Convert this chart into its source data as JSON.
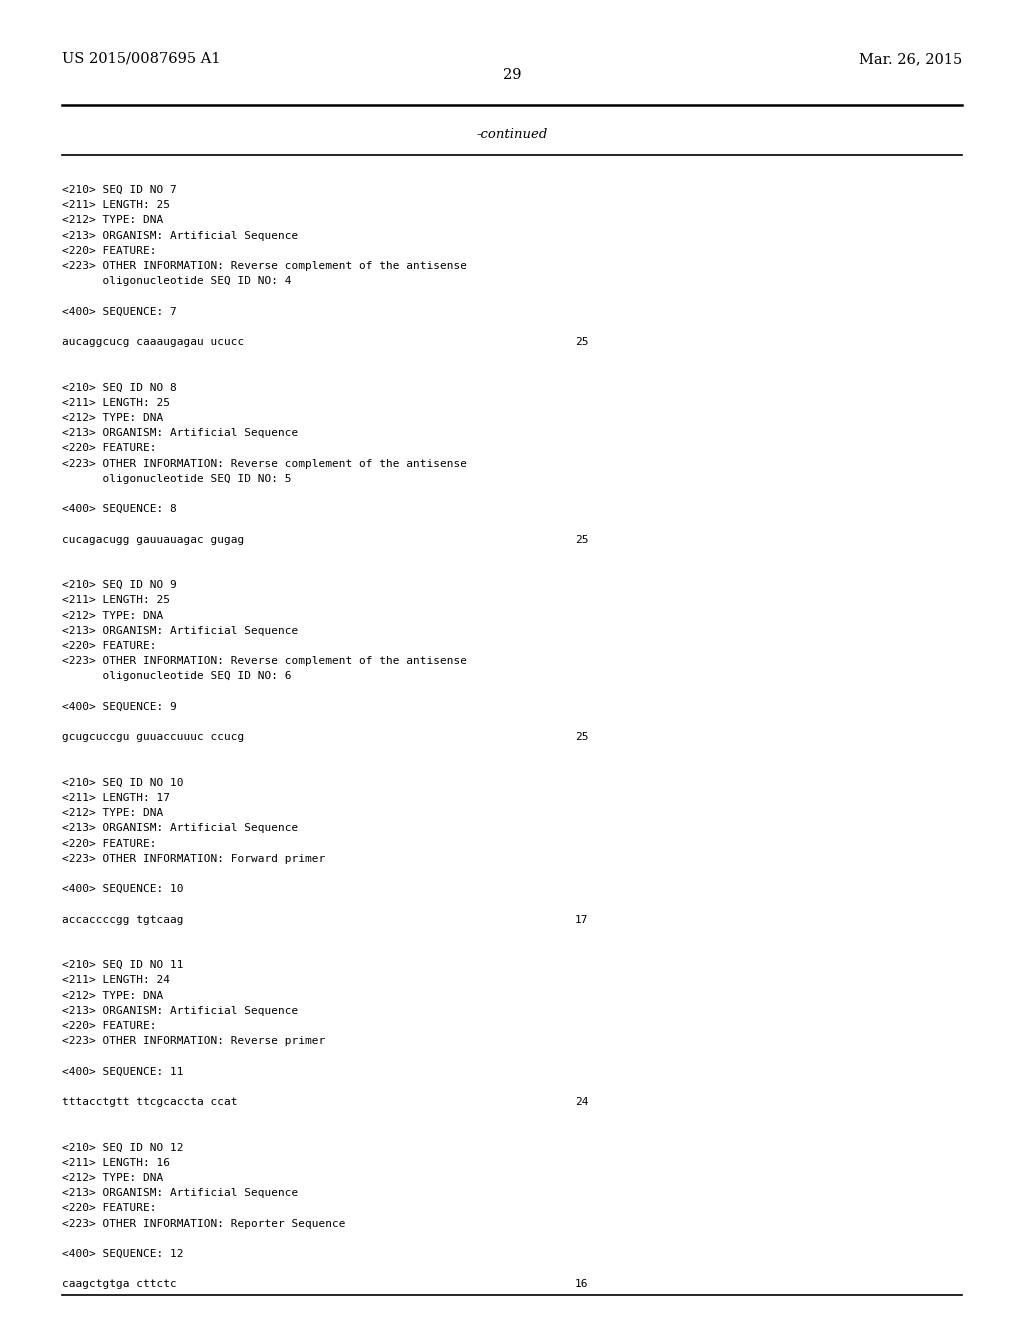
{
  "background_color": "#ffffff",
  "header_left": "US 2015/0087695 A1",
  "header_right": "Mar. 26, 2015",
  "page_number": "29",
  "continued_text": "-continued",
  "content_lines": [
    {
      "text": "<210> SEQ ID NO 7",
      "number": null
    },
    {
      "text": "<211> LENGTH: 25",
      "number": null
    },
    {
      "text": "<212> TYPE: DNA",
      "number": null
    },
    {
      "text": "<213> ORGANISM: Artificial Sequence",
      "number": null
    },
    {
      "text": "<220> FEATURE:",
      "number": null
    },
    {
      "text": "<223> OTHER INFORMATION: Reverse complement of the antisense",
      "number": null
    },
    {
      "text": "      oligonucleotide SEQ ID NO: 4",
      "number": null
    },
    {
      "text": "",
      "number": null
    },
    {
      "text": "<400> SEQUENCE: 7",
      "number": null
    },
    {
      "text": "",
      "number": null
    },
    {
      "text": "aucaggcucg caaaugagau ucucc",
      "number": "25"
    },
    {
      "text": "",
      "number": null
    },
    {
      "text": "",
      "number": null
    },
    {
      "text": "<210> SEQ ID NO 8",
      "number": null
    },
    {
      "text": "<211> LENGTH: 25",
      "number": null
    },
    {
      "text": "<212> TYPE: DNA",
      "number": null
    },
    {
      "text": "<213> ORGANISM: Artificial Sequence",
      "number": null
    },
    {
      "text": "<220> FEATURE:",
      "number": null
    },
    {
      "text": "<223> OTHER INFORMATION: Reverse complement of the antisense",
      "number": null
    },
    {
      "text": "      oligonucleotide SEQ ID NO: 5",
      "number": null
    },
    {
      "text": "",
      "number": null
    },
    {
      "text": "<400> SEQUENCE: 8",
      "number": null
    },
    {
      "text": "",
      "number": null
    },
    {
      "text": "cucagacugg gauuauagac gugag",
      "number": "25"
    },
    {
      "text": "",
      "number": null
    },
    {
      "text": "",
      "number": null
    },
    {
      "text": "<210> SEQ ID NO 9",
      "number": null
    },
    {
      "text": "<211> LENGTH: 25",
      "number": null
    },
    {
      "text": "<212> TYPE: DNA",
      "number": null
    },
    {
      "text": "<213> ORGANISM: Artificial Sequence",
      "number": null
    },
    {
      "text": "<220> FEATURE:",
      "number": null
    },
    {
      "text": "<223> OTHER INFORMATION: Reverse complement of the antisense",
      "number": null
    },
    {
      "text": "      oligonucleotide SEQ ID NO: 6",
      "number": null
    },
    {
      "text": "",
      "number": null
    },
    {
      "text": "<400> SEQUENCE: 9",
      "number": null
    },
    {
      "text": "",
      "number": null
    },
    {
      "text": "gcugcuccgu guuaccuuuc ccucg",
      "number": "25"
    },
    {
      "text": "",
      "number": null
    },
    {
      "text": "",
      "number": null
    },
    {
      "text": "<210> SEQ ID NO 10",
      "number": null
    },
    {
      "text": "<211> LENGTH: 17",
      "number": null
    },
    {
      "text": "<212> TYPE: DNA",
      "number": null
    },
    {
      "text": "<213> ORGANISM: Artificial Sequence",
      "number": null
    },
    {
      "text": "<220> FEATURE:",
      "number": null
    },
    {
      "text": "<223> OTHER INFORMATION: Forward primer",
      "number": null
    },
    {
      "text": "",
      "number": null
    },
    {
      "text": "<400> SEQUENCE: 10",
      "number": null
    },
    {
      "text": "",
      "number": null
    },
    {
      "text": "accaccccgg tgtcaag",
      "number": "17"
    },
    {
      "text": "",
      "number": null
    },
    {
      "text": "",
      "number": null
    },
    {
      "text": "<210> SEQ ID NO 11",
      "number": null
    },
    {
      "text": "<211> LENGTH: 24",
      "number": null
    },
    {
      "text": "<212> TYPE: DNA",
      "number": null
    },
    {
      "text": "<213> ORGANISM: Artificial Sequence",
      "number": null
    },
    {
      "text": "<220> FEATURE:",
      "number": null
    },
    {
      "text": "<223> OTHER INFORMATION: Reverse primer",
      "number": null
    },
    {
      "text": "",
      "number": null
    },
    {
      "text": "<400> SEQUENCE: 11",
      "number": null
    },
    {
      "text": "",
      "number": null
    },
    {
      "text": "tttacctgtt ttcgcaccta ccat",
      "number": "24"
    },
    {
      "text": "",
      "number": null
    },
    {
      "text": "",
      "number": null
    },
    {
      "text": "<210> SEQ ID NO 12",
      "number": null
    },
    {
      "text": "<211> LENGTH: 16",
      "number": null
    },
    {
      "text": "<212> TYPE: DNA",
      "number": null
    },
    {
      "text": "<213> ORGANISM: Artificial Sequence",
      "number": null
    },
    {
      "text": "<220> FEATURE:",
      "number": null
    },
    {
      "text": "<223> OTHER INFORMATION: Reporter Sequence",
      "number": null
    },
    {
      "text": "",
      "number": null
    },
    {
      "text": "<400> SEQUENCE: 12",
      "number": null
    },
    {
      "text": "",
      "number": null
    },
    {
      "text": "caagctgtga cttctc",
      "number": "16"
    }
  ]
}
